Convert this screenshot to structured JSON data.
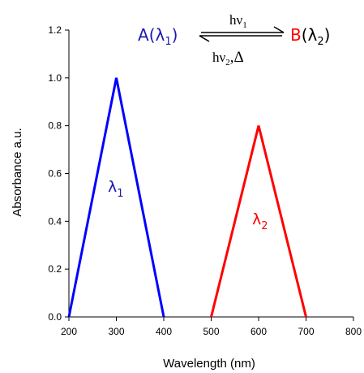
{
  "chart_data": {
    "type": "line",
    "title": "",
    "xlabel": "Wavelength (nm)",
    "ylabel": "Absorbance a.u.",
    "xlim": [
      200,
      800
    ],
    "ylim": [
      0,
      1.2
    ],
    "x_ticks": [
      "200",
      "300",
      "400",
      "500",
      "600",
      "700",
      "800"
    ],
    "y_ticks": [
      "0.0",
      "0.2",
      "0.4",
      "0.6",
      "0.8",
      "1.0",
      "1.2"
    ],
    "grid": false,
    "series": [
      {
        "name": "λ1",
        "color": "#0000ff",
        "points": [
          [
            200,
            0
          ],
          [
            300,
            1.0
          ],
          [
            400,
            0
          ]
        ]
      },
      {
        "name": "λ2",
        "color": "#ff0000",
        "points": [
          [
            500,
            0
          ],
          [
            600,
            0.8
          ],
          [
            700,
            0
          ]
        ]
      }
    ],
    "annotations": {
      "species_a": "A",
      "species_b": "B",
      "lambda": "λ",
      "sub_1": "1",
      "sub_2": "2",
      "forward_label": "hν",
      "reverse_label": "hν",
      "reverse_heat": ",Δ",
      "lambda_1_label": "λ",
      "lambda_2_label": "λ",
      "species_a_color": "#1a1ab0",
      "species_b_color": "#ff0000"
    }
  }
}
